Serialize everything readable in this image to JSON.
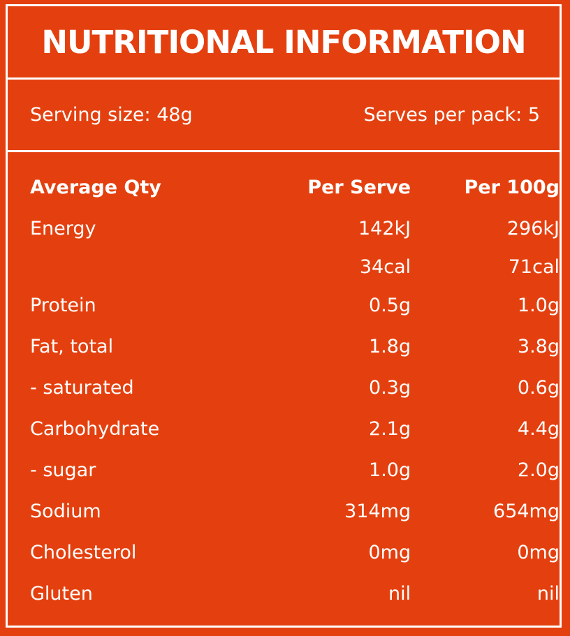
{
  "title": "NUTRITIONAL INFORMATION",
  "serving": {
    "size": "Serving size: 48g",
    "per_pack": "Serves per pack: 5"
  },
  "table": {
    "headers": [
      "Average Qty",
      "Per Serve",
      "Per 100g"
    ],
    "rows": [
      {
        "label": "Energy",
        "per_serve": "142kJ",
        "per_100g": "296kJ"
      },
      {
        "label": "",
        "per_serve": "34cal",
        "per_100g": "71cal"
      },
      {
        "label": "Protein",
        "per_serve": "0.5g",
        "per_100g": "1.0g"
      },
      {
        "label": "Fat, total",
        "per_serve": "1.8g",
        "per_100g": "3.8g"
      },
      {
        "label": "- saturated",
        "per_serve": "0.3g",
        "per_100g": "0.6g"
      },
      {
        "label": "Carbohydrate",
        "per_serve": "2.1g",
        "per_100g": "4.4g"
      },
      {
        "label": "- sugar",
        "per_serve": "1.0g",
        "per_100g": "2.0g"
      },
      {
        "label": "Sodium",
        "per_serve": "314mg",
        "per_100g": "654mg"
      },
      {
        "label": "Cholesterol",
        "per_serve": "0mg",
        "per_100g": "0mg"
      },
      {
        "label": "Gluten",
        "per_serve": "nil",
        "per_100g": "nil"
      }
    ]
  },
  "colors": {
    "background": "#e4400f",
    "text": "#ffffff"
  }
}
